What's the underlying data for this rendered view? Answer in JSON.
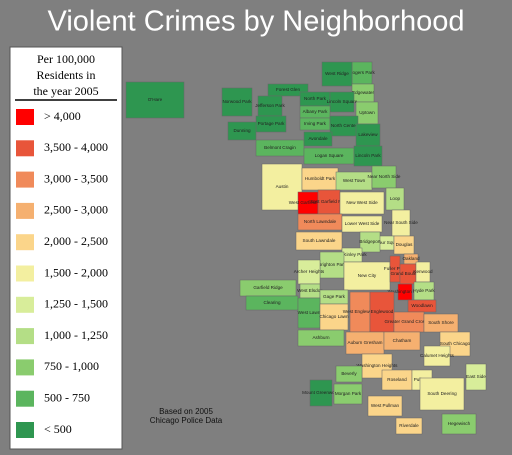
{
  "title": "Violent Crimes by Neighborhood",
  "legend": {
    "title_lines": [
      "Per 100,000",
      "Residents in",
      "the year 2005"
    ],
    "items": [
      {
        "label": "> 4,000",
        "color": "#ff0000"
      },
      {
        "label": "3,500 - 4,000",
        "color": "#e8553a"
      },
      {
        "label": "3,000 - 3,500",
        "color": "#f08a5a"
      },
      {
        "label": "2,500 - 3,000",
        "color": "#f5b070"
      },
      {
        "label": "2,000 - 2,500",
        "color": "#fbd58a"
      },
      {
        "label": "1,500 - 2,000",
        "color": "#f3efa0"
      },
      {
        "label": "1,250 - 1,500",
        "color": "#d8ed9a"
      },
      {
        "label": "1,000 - 1,250",
        "color": "#b4de86"
      },
      {
        "label": "750 - 1,000",
        "color": "#8acc6e"
      },
      {
        "label": "500 - 750",
        "color": "#5bb55e"
      },
      {
        "label": "< 500",
        "color": "#2e9650"
      }
    ]
  },
  "map": {
    "neighborhoods": [
      {
        "name": "Rogers Park",
        "color": "#5bb55e"
      },
      {
        "name": "West Ridge",
        "color": "#2e9650"
      },
      {
        "name": "Edgewater",
        "color": "#8acc6e"
      },
      {
        "name": "Forest Glen",
        "color": "#2e9650"
      },
      {
        "name": "Norwood Park",
        "color": "#2e9650"
      },
      {
        "name": "Jefferson Park",
        "color": "#2e9650"
      },
      {
        "name": "North Park",
        "color": "#2e9650"
      },
      {
        "name": "Lincoln Square",
        "color": "#2e9650"
      },
      {
        "name": "Albany Park",
        "color": "#5bb55e"
      },
      {
        "name": "Uptown",
        "color": "#8acc6e"
      },
      {
        "name": "Portage Park",
        "color": "#2e9650"
      },
      {
        "name": "Irving Park",
        "color": "#5bb55e"
      },
      {
        "name": "North Center",
        "color": "#2e9650"
      },
      {
        "name": "Dunning",
        "color": "#2e9650"
      },
      {
        "name": "Lakeview",
        "color": "#2e9650"
      },
      {
        "name": "Belmont Cragin",
        "color": "#5bb55e"
      },
      {
        "name": "Avondale",
        "color": "#2e9650"
      },
      {
        "name": "Logan Square",
        "color": "#5bb55e"
      },
      {
        "name": "Lincoln Park",
        "color": "#2e9650"
      },
      {
        "name": "O'Hare",
        "color": "#2e9650"
      },
      {
        "name": "Austin",
        "color": "#f3efa0"
      },
      {
        "name": "Humboldt Park",
        "color": "#fbd58a"
      },
      {
        "name": "West Town",
        "color": "#b4de86"
      },
      {
        "name": "Near North Side",
        "color": "#8acc6e"
      },
      {
        "name": "Loop",
        "color": "#b4de86"
      },
      {
        "name": "West Garfield Park",
        "color": "#ff0000"
      },
      {
        "name": "East Garfield Park",
        "color": "#e8553a"
      },
      {
        "name": "New West Side",
        "color": "#f3efa0"
      },
      {
        "name": "North Lawndale",
        "color": "#f08a5a"
      },
      {
        "name": "Near South Side",
        "color": "#f3efa0"
      },
      {
        "name": "South Lawndale",
        "color": "#fbd58a"
      },
      {
        "name": "Lower West Side",
        "color": "#f3efa0"
      },
      {
        "name": "Armour Square",
        "color": "#d8ed9a"
      },
      {
        "name": "Bridgeport",
        "color": "#b4de86"
      },
      {
        "name": "Douglas",
        "color": "#fbd58a"
      },
      {
        "name": "McKinley Park",
        "color": "#d8ed9a"
      },
      {
        "name": "Oakland",
        "color": "#f5b070"
      },
      {
        "name": "Brighton Park",
        "color": "#b4de86"
      },
      {
        "name": "New City",
        "color": "#f3efa0"
      },
      {
        "name": "Fuller Park",
        "color": "#e8553a"
      },
      {
        "name": "Grand Boulevard",
        "color": "#e8553a"
      },
      {
        "name": "Kenwood",
        "color": "#f3efa0"
      },
      {
        "name": "Archer Heights",
        "color": "#d8ed9a"
      },
      {
        "name": "Washington Park",
        "color": "#ff0000"
      },
      {
        "name": "Hyde Park",
        "color": "#b4de86"
      },
      {
        "name": "Garfield Ridge",
        "color": "#8acc6e"
      },
      {
        "name": "West Elsdon",
        "color": "#b4de86"
      },
      {
        "name": "Gage Park",
        "color": "#b4de86"
      },
      {
        "name": "Woodlawn",
        "color": "#e8553a"
      },
      {
        "name": "Clearing",
        "color": "#5bb55e"
      },
      {
        "name": "West Lawn",
        "color": "#5bb55e"
      },
      {
        "name": "Chicago Lawn",
        "color": "#fbd58a"
      },
      {
        "name": "West Englewood",
        "color": "#f08a5a"
      },
      {
        "name": "Englewood",
        "color": "#e8553a"
      },
      {
        "name": "Greater Grand Crossing",
        "color": "#f08a5a"
      },
      {
        "name": "South Shore",
        "color": "#f5b070"
      },
      {
        "name": "Ashburn",
        "color": "#8acc6e"
      },
      {
        "name": "Auburn Gresham",
        "color": "#f5b070"
      },
      {
        "name": "Chatham",
        "color": "#f5b070"
      },
      {
        "name": "South Chicago",
        "color": "#fbd58a"
      },
      {
        "name": "Washington Heights",
        "color": "#fbd58a"
      },
      {
        "name": "Calumet Heights",
        "color": "#f3efa0"
      },
      {
        "name": "Roseland",
        "color": "#fbd58a"
      },
      {
        "name": "Pullman",
        "color": "#f3efa0"
      },
      {
        "name": "Beverly",
        "color": "#8acc6e"
      },
      {
        "name": "Mount Greenwood",
        "color": "#2e9650"
      },
      {
        "name": "Morgan Park",
        "color": "#8acc6e"
      },
      {
        "name": "South Deering",
        "color": "#f3efa0"
      },
      {
        "name": "East Side",
        "color": "#d8ed9a"
      },
      {
        "name": "West Pullman",
        "color": "#fbd58a"
      },
      {
        "name": "Riverdale",
        "color": "#fbd58a"
      },
      {
        "name": "Hegewisch",
        "color": "#8acc6e"
      }
    ],
    "credit": [
      "Based on 2005",
      "Chicago Police Data"
    ]
  }
}
